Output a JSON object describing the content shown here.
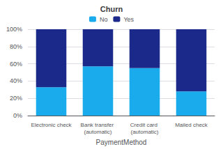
{
  "chart_data": {
    "type": "bar",
    "title": "Churn",
    "xlabel": "PaymentMethod",
    "categories": [
      "Electronic check",
      "Bank transfer (automatic)",
      "Credit card (automatic)",
      "Mailed check"
    ],
    "series": [
      {
        "name": "No",
        "color": "#1AABEC",
        "values": [
          33,
          57,
          55,
          28
        ]
      },
      {
        "name": "Yes",
        "color": "#1B2A8A",
        "values": [
          67,
          43,
          45,
          72
        ]
      }
    ],
    "stacked": true,
    "ylim": [
      0,
      100
    ],
    "yticks": [
      {
        "value": 0,
        "label": "0%"
      },
      {
        "value": 20,
        "label": "20%"
      },
      {
        "value": 40,
        "label": "40%"
      },
      {
        "value": 60,
        "label": "60%"
      },
      {
        "value": 80,
        "label": "80%"
      },
      {
        "value": 100,
        "label": "100%"
      }
    ],
    "grid": true,
    "legend": "top"
  }
}
